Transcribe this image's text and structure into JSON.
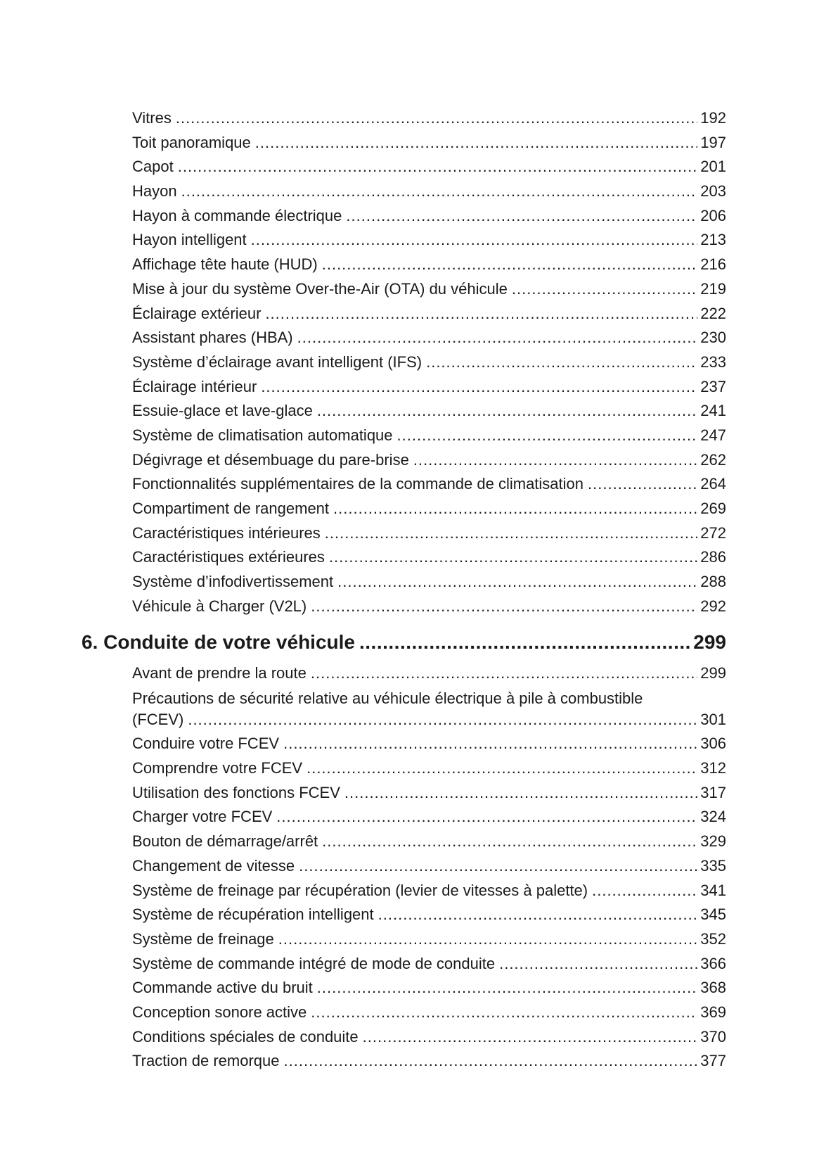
{
  "section5_items": [
    {
      "title": "Vitres",
      "page": "192"
    },
    {
      "title": "Toit panoramique",
      "page": "197"
    },
    {
      "title": "Capot",
      "page": "201"
    },
    {
      "title": "Hayon",
      "page": "203"
    },
    {
      "title": "Hayon à commande électrique",
      "page": "206"
    },
    {
      "title": "Hayon intelligent",
      "page": "213"
    },
    {
      "title": "Affichage tête haute (HUD)",
      "page": "216"
    },
    {
      "title": "Mise à jour du système Over-the-Air (OTA) du véhicule",
      "page": "219"
    },
    {
      "title": "Éclairage extérieur",
      "page": "222"
    },
    {
      "title": "Assistant phares (HBA)",
      "page": "230"
    },
    {
      "title": "Système d’éclairage avant intelligent (IFS)",
      "page": "233"
    },
    {
      "title": "Éclairage intérieur",
      "page": "237"
    },
    {
      "title": "Essuie-glace et lave-glace",
      "page": "241"
    },
    {
      "title": "Système de climatisation automatique",
      "page": "247"
    },
    {
      "title": "Dégivrage et désembuage du pare-brise",
      "page": "262"
    },
    {
      "title": "Fonctionnalités supplémentaires de la commande de climatisation",
      "page": "264"
    },
    {
      "title": "Compartiment de rangement",
      "page": "269"
    },
    {
      "title": "Caractéristiques intérieures",
      "page": "272"
    },
    {
      "title": "Caractéristiques extérieures",
      "page": "286"
    },
    {
      "title": "Système d’infodivertissement",
      "page": "288"
    },
    {
      "title": "Véhicule à Charger (V2L)",
      "page": "292"
    }
  ],
  "section6": {
    "title": "6. Conduite de votre véhicule",
    "page": "299",
    "items": [
      {
        "title": "Avant de prendre la route",
        "page": "299"
      },
      {
        "title": "Précautions de sécurité relative au véhicule électrique à pile à combustible",
        "title_cont": "(FCEV)",
        "page": "301"
      },
      {
        "title": "Conduire votre FCEV",
        "page": "306"
      },
      {
        "title": "Comprendre votre FCEV",
        "page": "312"
      },
      {
        "title": "Utilisation des fonctions FCEV",
        "page": "317"
      },
      {
        "title": "Charger votre FCEV",
        "page": "324"
      },
      {
        "title": "Bouton de démarrage/arrêt",
        "page": "329"
      },
      {
        "title": "Changement de vitesse",
        "page": "335"
      },
      {
        "title": "Système de freinage par récupération (levier de vitesses à palette)",
        "page": "341"
      },
      {
        "title": "Système de récupération intelligent",
        "page": "345"
      },
      {
        "title": "Système de freinage",
        "page": "352"
      },
      {
        "title": "Système de commande intégré de mode de conduite",
        "page": "366"
      },
      {
        "title": "Commande active du bruit",
        "page": "368"
      },
      {
        "title": "Conception sonore active",
        "page": "369"
      },
      {
        "title": "Conditions spéciales de conduite",
        "page": "370"
      },
      {
        "title": "Traction de remorque",
        "page": "377"
      }
    ]
  }
}
